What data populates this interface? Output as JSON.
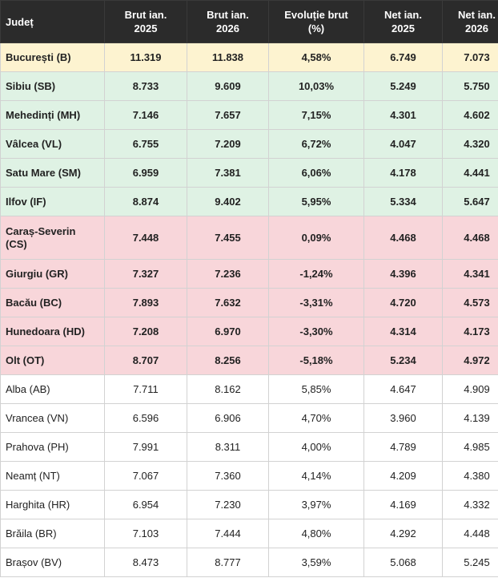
{
  "table": {
    "headers": [
      "Județ",
      "Brut ian.\n2025",
      "Brut ian.\n2026",
      "Evoluție brut\n(%)",
      "Net ian.\n2025",
      "Net ian.\n2026"
    ],
    "rows": [
      {
        "group": "yellow",
        "cells": [
          "București (B)",
          "11.319",
          "11.838",
          "4,58%",
          "6.749",
          "7.073"
        ]
      },
      {
        "group": "green",
        "cells": [
          "Sibiu (SB)",
          "8.733",
          "9.609",
          "10,03%",
          "5.249",
          "5.750"
        ]
      },
      {
        "group": "green",
        "cells": [
          "Mehedinți (MH)",
          "7.146",
          "7.657",
          "7,15%",
          "4.301",
          "4.602"
        ]
      },
      {
        "group": "green",
        "cells": [
          "Vâlcea (VL)",
          "6.755",
          "7.209",
          "6,72%",
          "4.047",
          "4.320"
        ]
      },
      {
        "group": "green",
        "cells": [
          "Satu Mare (SM)",
          "6.959",
          "7.381",
          "6,06%",
          "4.178",
          "4.441"
        ]
      },
      {
        "group": "green",
        "cells": [
          "Ilfov (IF)",
          "8.874",
          "9.402",
          "5,95%",
          "5.334",
          "5.647"
        ]
      },
      {
        "group": "red",
        "cells": [
          "Caraș-Severin\n(CS)",
          "7.448",
          "7.455",
          "0,09%",
          "4.468",
          "4.468"
        ]
      },
      {
        "group": "red",
        "cells": [
          "Giurgiu (GR)",
          "7.327",
          "7.236",
          "-1,24%",
          "4.396",
          "4.341"
        ]
      },
      {
        "group": "red",
        "cells": [
          "Bacău (BC)",
          "7.893",
          "7.632",
          "-3,31%",
          "4.720",
          "4.573"
        ]
      },
      {
        "group": "red",
        "cells": [
          "Hunedoara (HD)",
          "7.208",
          "6.970",
          "-3,30%",
          "4.314",
          "4.173"
        ]
      },
      {
        "group": "red",
        "cells": [
          "Olt (OT)",
          "8.707",
          "8.256",
          "-5,18%",
          "5.234",
          "4.972"
        ]
      },
      {
        "group": "white",
        "cells": [
          "Alba (AB)",
          "7.711",
          "8.162",
          "5,85%",
          "4.647",
          "4.909"
        ]
      },
      {
        "group": "white",
        "cells": [
          "Vrancea (VN)",
          "6.596",
          "6.906",
          "4,70%",
          "3.960",
          "4.139"
        ]
      },
      {
        "group": "white",
        "cells": [
          "Prahova (PH)",
          "7.991",
          "8.311",
          "4,00%",
          "4.789",
          "4.985"
        ]
      },
      {
        "group": "white",
        "cells": [
          "Neamț (NT)",
          "7.067",
          "7.360",
          "4,14%",
          "4.209",
          "4.380"
        ]
      },
      {
        "group": "white",
        "cells": [
          "Harghita (HR)",
          "6.954",
          "7.230",
          "3,97%",
          "4.169",
          "4.332"
        ]
      },
      {
        "group": "white",
        "cells": [
          "Brăila (BR)",
          "7.103",
          "7.444",
          "4,80%",
          "4.292",
          "4.448"
        ]
      },
      {
        "group": "white",
        "cells": [
          "Brașov (BV)",
          "8.473",
          "8.777",
          "3,59%",
          "5.068",
          "5.245"
        ]
      }
    ]
  },
  "colors": {
    "header_bg": "#2b2b2b",
    "yellow": "#fdf3d0",
    "green": "#dff2e4",
    "red": "#f8d6da",
    "white": "#ffffff"
  }
}
